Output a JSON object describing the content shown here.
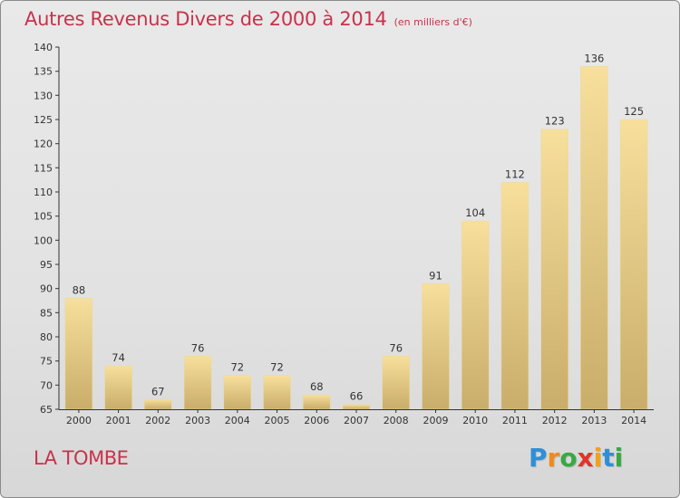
{
  "colors": {
    "title": "#c8324b",
    "bar_light": "#f7df9c",
    "bar_dark": "#c9ad6a",
    "axis": "#333333"
  },
  "header": {
    "title": "Autres Revenus Divers de 2000 à 2014",
    "subtitle": "(en milliers d'€)"
  },
  "footer": {
    "commune": "LA TOMBE",
    "logo_letters": [
      {
        "ch": "P",
        "color": "#2f8fd6"
      },
      {
        "ch": "r",
        "color": "#f08a1c"
      },
      {
        "ch": "o",
        "color": "#3aa843"
      },
      {
        "ch": "x",
        "color": "#e2342b"
      },
      {
        "ch": "i",
        "color": "#f0a21c"
      },
      {
        "ch": "t",
        "color": "#2f8fd6"
      },
      {
        "ch": "i",
        "color": "#3aa843"
      }
    ]
  },
  "chart_data": {
    "type": "bar",
    "title": "Autres Revenus Divers de 2000 à 2014",
    "subtitle": "(en milliers d'€)",
    "xlabel": "",
    "ylabel": "",
    "categories": [
      "2000",
      "2001",
      "2002",
      "2003",
      "2004",
      "2005",
      "2006",
      "2007",
      "2008",
      "2009",
      "2010",
      "2011",
      "2012",
      "2013",
      "2014"
    ],
    "values": [
      88,
      74,
      67,
      76,
      72,
      72,
      68,
      66,
      76,
      91,
      104,
      112,
      123,
      136,
      125
    ],
    "ylim": [
      65,
      140
    ],
    "yticks": [
      65,
      70,
      75,
      80,
      85,
      90,
      95,
      100,
      105,
      110,
      115,
      120,
      125,
      130,
      135,
      140
    ],
    "grid": false,
    "legend": "none"
  }
}
